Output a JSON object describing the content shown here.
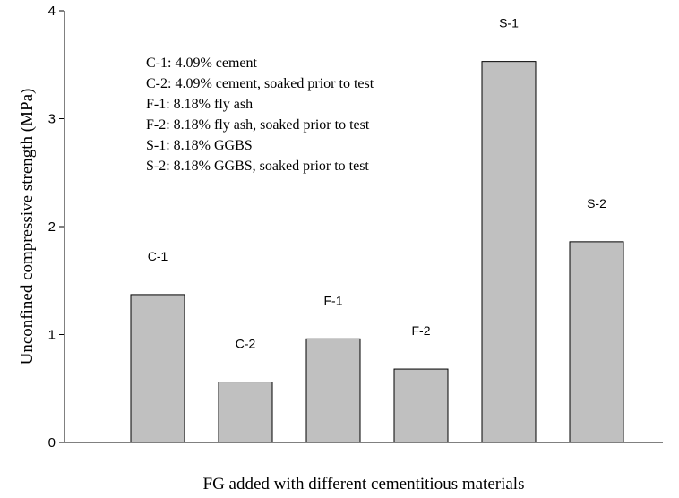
{
  "chart_data": {
    "type": "bar",
    "categories": [
      "C-1",
      "C-2",
      "F-1",
      "F-2",
      "S-1",
      "S-2"
    ],
    "values": [
      1.37,
      0.56,
      0.96,
      0.68,
      3.53,
      1.86
    ],
    "bar_color": "#c0c0c0",
    "title": "",
    "xlabel": "FG added with different cementitious materials",
    "ylabel": "Unconfined compressive strength (MPa)",
    "ylim": [
      0,
      4
    ],
    "yticks": [
      "0",
      "1",
      "2",
      "3",
      "4"
    ],
    "grid": false,
    "legend_placement": "top-left",
    "legend_lines": [
      "C-1: 4.09% cement",
      "C-2: 4.09% cement, soaked prior to test",
      "F-1: 8.18% fly ash",
      "F-2: 8.18% fly ash, soaked prior to test",
      "S-1: 8.18% GGBS",
      "S-2: 8.18% GGBS, soaked prior to test"
    ]
  }
}
